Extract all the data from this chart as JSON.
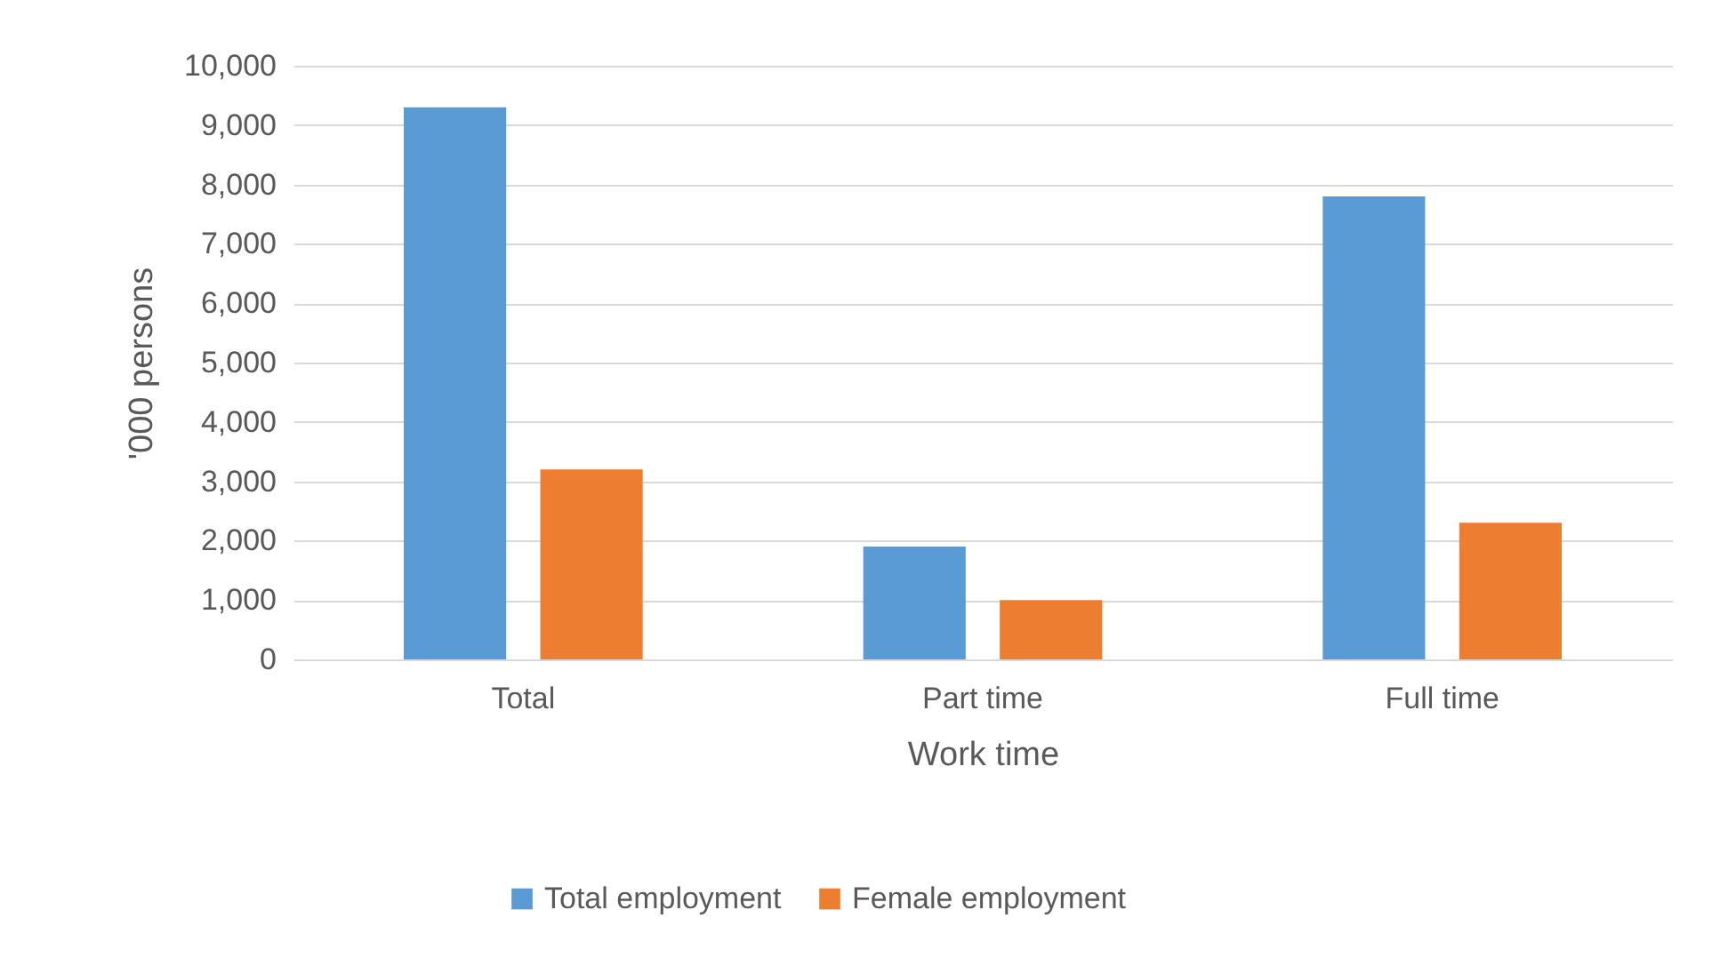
{
  "chart_data": {
    "type": "bar",
    "xlabel": "Work time",
    "ylabel": "'000 persons",
    "categories": [
      "Total",
      "Part time",
      "Full time"
    ],
    "series": [
      {
        "name": "Total employment",
        "color": "#5b9bd5",
        "values": [
          9300,
          1900,
          7800
        ]
      },
      {
        "name": "Female employment",
        "color": "#ed7d31",
        "values": [
          3200,
          1000,
          2300
        ]
      }
    ],
    "ylim": [
      0,
      10000
    ],
    "yticks": [
      0,
      {
        "value": 1000,
        "label": "1,000"
      },
      {
        "value": 2000,
        "label": "2,000"
      },
      {
        "value": 3000,
        "label": "3,000"
      },
      {
        "value": 4000,
        "label": "4,000"
      },
      {
        "value": 5000,
        "label": "5,000"
      },
      {
        "value": 6000,
        "label": "6,000"
      },
      {
        "value": 7000,
        "label": "7,000"
      },
      {
        "value": 8000,
        "label": "8,000"
      },
      {
        "value": 9000,
        "label": "9,000"
      },
      {
        "value": 10000,
        "label": "10,000"
      }
    ],
    "grid": "y",
    "legend": "bottom"
  }
}
